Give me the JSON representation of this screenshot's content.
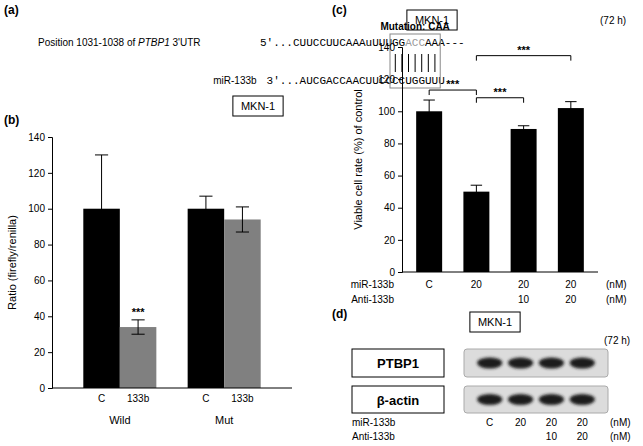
{
  "sequence_panel": {
    "panel": "(a)",
    "mutation_label": "Mutation: CAA",
    "target_label": {
      "prefix": "Position 1031-1038 of ",
      "gene": "PTBP1",
      "suffix": " 3'UTR"
    },
    "target_sequence": {
      "before": "5'...CUUCCUUCAAAuUUU",
      "seed": [
        "GG",
        "ACC",
        "AA"
      ],
      "after": "A---"
    },
    "mirna_label": "miR-133b",
    "mirna_sequence": {
      "before": "3'...AUCGACCAACUUCC",
      "seed": "CCUGGUU",
      "after": "U"
    }
  },
  "chart_data": [
    {
      "type": "bar",
      "panel": "(b)",
      "title": "MKN-1",
      "y_label": "Ratio (firefly/renilla)",
      "categories": [
        "Wild",
        "Mut"
      ],
      "series": [
        {
          "name": "C",
          "color": "#000000",
          "values": [
            100,
            100
          ],
          "errors": [
            30,
            7
          ]
        },
        {
          "name": "133b",
          "color": "#808080",
          "values": [
            34,
            94
          ],
          "errors": [
            4,
            7
          ]
        }
      ],
      "ylim": [
        0,
        140
      ],
      "yticks": [
        0,
        20,
        40,
        60,
        80,
        100,
        120,
        140
      ],
      "annotations": [
        {
          "text": "***",
          "series": 1,
          "category": 0
        }
      ]
    },
    {
      "type": "bar",
      "panel": "(c)",
      "title": "MKN-1",
      "subtitle": "(72 h)",
      "y_label": "Viable cell rate (%) of control",
      "category_rows": [
        {
          "label": "miR-133b",
          "labels": [
            "C",
            "20",
            "20",
            "20"
          ],
          "unit": "(nM)"
        },
        {
          "label": "Anti-133b",
          "labels": [
            null,
            null,
            "10",
            "20"
          ],
          "unit": "(nM)"
        }
      ],
      "values": [
        100,
        50,
        89,
        102
      ],
      "errors": [
        7,
        4,
        2,
        4
      ],
      "color": "#000000",
      "ylim": [
        0,
        140
      ],
      "yticks": [
        0,
        20,
        40,
        60,
        80,
        100,
        120,
        140
      ],
      "brackets": [
        {
          "from": 0,
          "to": 1,
          "text": "***"
        },
        {
          "from": 1,
          "to": 2,
          "text": "***"
        },
        {
          "from": 1,
          "to": 3,
          "text": "***"
        }
      ]
    }
  ],
  "blot_panel": {
    "panel": "(d)",
    "title": "MKN-1",
    "subtitle": "(72 h)",
    "rows": [
      "PTBP1",
      "β-actin"
    ],
    "condition_rows": [
      {
        "label": "miR-133b",
        "labels": [
          "C",
          "20",
          "20",
          "20"
        ],
        "unit": "(nM)"
      },
      {
        "label": "Anti-133b",
        "labels": [
          null,
          null,
          "10",
          "20"
        ],
        "unit": "(nM)"
      }
    ]
  }
}
